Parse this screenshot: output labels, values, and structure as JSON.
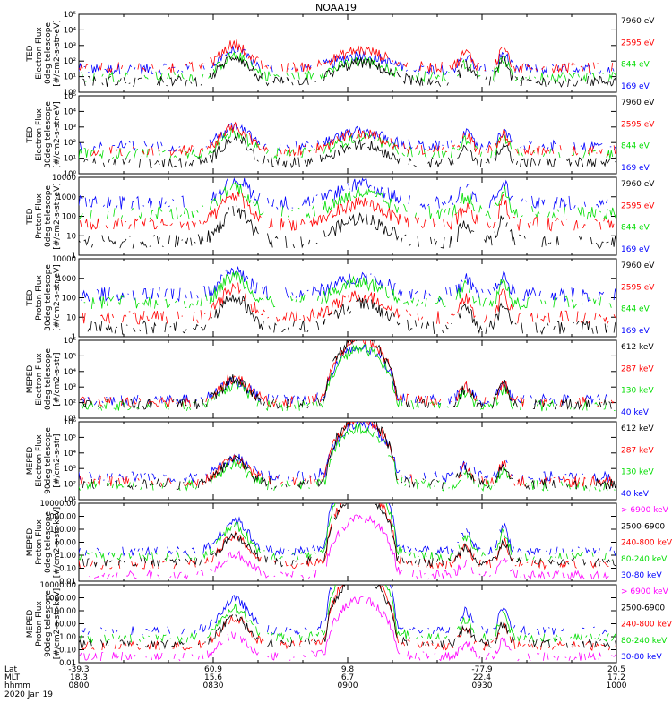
{
  "title": "NOAA19",
  "date_label": "2020 Jan 19",
  "footer": {
    "row_labels": [
      "Lat",
      "MLT",
      "hhmm"
    ],
    "columns": [
      {
        "lat": "-39.3",
        "mlt": "18.3",
        "hhmm": "0800"
      },
      {
        "lat": "60.9",
        "mlt": "15.6",
        "hhmm": "0830"
      },
      {
        "lat": "9.8",
        "mlt": "6.7",
        "hhmm": "0900"
      },
      {
        "lat": "-77.9",
        "mlt": "22.4",
        "hhmm": "0930"
      },
      {
        "lat": "20.5",
        "mlt": "17.2",
        "hhmm": "1000"
      }
    ]
  },
  "chart_data": [
    {
      "type": "line",
      "ylabel": [
        "TED",
        "Electron Flux",
        "0deg telescope",
        "[#/cm2-s-str-eV]"
      ],
      "yscale": "log",
      "ylim": [
        1,
        100000
      ],
      "ytick_labels": [
        "10⁰",
        "10¹",
        "10²",
        "10³",
        "10⁴",
        "10⁵"
      ],
      "xlim_hhmm": [
        "0800",
        "1000"
      ],
      "series": [
        {
          "name": "7960 eV",
          "color": "#000000",
          "base": 5
        },
        {
          "name": "2595 eV",
          "color": "#ff0000",
          "base": 40
        },
        {
          "name": "844 eV",
          "color": "#00dd00",
          "base": 10
        },
        {
          "name": "169 eV",
          "color": "#0000ff",
          "base": 30
        }
      ]
    },
    {
      "type": "line",
      "ylabel": [
        "TED",
        "Electron Flux",
        "30deg telescope",
        "[#/cm2-s-str-eV]"
      ],
      "yscale": "log",
      "ylim": [
        1,
        100000
      ],
      "ytick_labels": [
        "10⁰",
        "10¹",
        "10²",
        "10³",
        "10⁴",
        "10⁵"
      ],
      "xlim_hhmm": [
        "0800",
        "1000"
      ],
      "series": [
        {
          "name": "7960 eV",
          "color": "#000000",
          "base": 5
        },
        {
          "name": "2595 eV",
          "color": "#ff0000",
          "base": 30
        },
        {
          "name": "844 eV",
          "color": "#00dd00",
          "base": 20
        },
        {
          "name": "169 eV",
          "color": "#0000ff",
          "base": 60
        }
      ]
    },
    {
      "type": "line",
      "ylabel": [
        "TED",
        "Proton Flux",
        "0deg telescope",
        "[#/cm2-s-str-eV]"
      ],
      "yscale": "log",
      "ylim": [
        1,
        10000
      ],
      "ytick_labels": [
        "1",
        "10",
        "100",
        "1000",
        "10000"
      ],
      "xlim_hhmm": [
        "0800",
        "1000"
      ],
      "series": [
        {
          "name": "7960 eV",
          "color": "#000000",
          "base": 5
        },
        {
          "name": "2595 eV",
          "color": "#ff0000",
          "base": 40
        },
        {
          "name": "844 eV",
          "color": "#00dd00",
          "base": 150
        },
        {
          "name": "169 eV",
          "color": "#0000ff",
          "base": 500
        }
      ]
    },
    {
      "type": "line",
      "ylabel": [
        "TED",
        "Proton Flux",
        "30deg telescope",
        "[#/cm2-s-str-eV]"
      ],
      "yscale": "log",
      "ylim": [
        1,
        10000
      ],
      "ytick_labels": [
        "1",
        "10",
        "100",
        "1000",
        "10000"
      ],
      "xlim_hhmm": [
        "0800",
        "1000"
      ],
      "series": [
        {
          "name": "7960 eV",
          "color": "#000000",
          "base": 3
        },
        {
          "name": "2595 eV",
          "color": "#ff0000",
          "base": 10
        },
        {
          "name": "844 eV",
          "color": "#00dd00",
          "base": 60
        },
        {
          "name": "169 eV",
          "color": "#0000ff",
          "base": 150
        }
      ]
    },
    {
      "type": "line",
      "ylabel": [
        "MEPED",
        "Electron Flux",
        "0deg telescope",
        "[#/cm2-s-str]"
      ],
      "yscale": "log",
      "ylim": [
        10,
        1000000
      ],
      "ytick_labels": [
        "10¹",
        "10²",
        "10³",
        "10⁴",
        "10⁵",
        "10⁶"
      ],
      "xlim_hhmm": [
        "0800",
        "1000"
      ],
      "series": [
        {
          "name": "612 keV",
          "color": "#000000",
          "base": 80
        },
        {
          "name": "287 keV",
          "color": "#ff0000",
          "base": 120
        },
        {
          "name": "130 keV",
          "color": "#00dd00",
          "base": 60
        },
        {
          "name": "40 keV",
          "color": "#0000ff",
          "base": 150
        }
      ]
    },
    {
      "type": "line",
      "ylabel": [
        "MEPED",
        "Electron Flux",
        "90deg telescope",
        "[#/cm2-s-str]"
      ],
      "yscale": "log",
      "ylim": [
        10,
        1000000
      ],
      "ytick_labels": [
        "10¹",
        "10²",
        "10³",
        "10⁴",
        "10⁵",
        "10⁶"
      ],
      "xlim_hhmm": [
        "0800",
        "1000"
      ],
      "series": [
        {
          "name": "612 keV",
          "color": "#000000",
          "base": 100
        },
        {
          "name": "287 keV",
          "color": "#ff0000",
          "base": 150
        },
        {
          "name": "130 keV",
          "color": "#00dd00",
          "base": 80
        },
        {
          "name": "40 keV",
          "color": "#0000ff",
          "base": 300
        }
      ]
    },
    {
      "type": "line",
      "ylabel": [
        "MEPED",
        "Proton Flux",
        "0deg telescope",
        "[#/cm2-s-str-keV]"
      ],
      "yscale": "log",
      "ylim": [
        0.01,
        10000
      ],
      "ytick_labels": [
        "0.01",
        "0.10",
        "1.00",
        "10.00",
        "100.00",
        "1000.00",
        "10000.00"
      ],
      "xlim_hhmm": [
        "0800",
        "1000"
      ],
      "series": [
        {
          "name": "> 6900 keV",
          "color": "#ff00ff",
          "base": 0.03
        },
        {
          "name": "2500-6900",
          "color": "#000000",
          "base": 0.3
        },
        {
          "name": "240-800 keV",
          "color": "#ff0000",
          "base": 0.2
        },
        {
          "name": "80-240 keV",
          "color": "#00dd00",
          "base": 0.8
        },
        {
          "name": "30-80 keV",
          "color": "#0000ff",
          "base": 2
        }
      ]
    },
    {
      "type": "line",
      "ylabel": [
        "MEPED",
        "Proton Flux",
        "90deg telescope",
        "[#/cm2-s-str-keV]"
      ],
      "yscale": "log",
      "ylim": [
        0.01,
        10000
      ],
      "ytick_labels": [
        "0.01",
        "0.10",
        "1.00",
        "10.00",
        "100.00",
        "1000.00",
        "10000.00"
      ],
      "xlim_hhmm": [
        "0800",
        "1000"
      ],
      "series": [
        {
          "name": "> 6900 keV",
          "color": "#ff00ff",
          "base": 0.03
        },
        {
          "name": "2500-6900",
          "color": "#000000",
          "base": 0.3
        },
        {
          "name": "240-800 keV",
          "color": "#ff0000",
          "base": 0.2
        },
        {
          "name": "80-240 keV",
          "color": "#00dd00",
          "base": 0.8
        },
        {
          "name": "30-80 keV",
          "color": "#0000ff",
          "base": 3
        }
      ]
    }
  ]
}
